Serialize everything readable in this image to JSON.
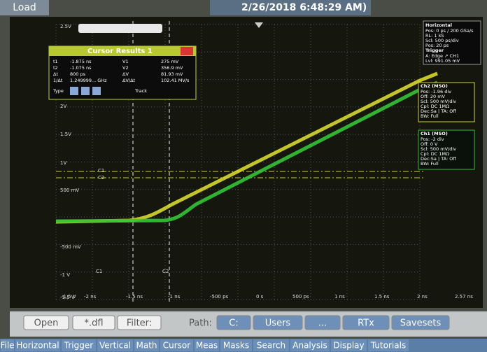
{
  "header": {
    "load": "Load",
    "datetime": "2/26/2018 6:48:29 AM)"
  },
  "axes": {
    "y_labels": [
      "2.5V",
      "2V",
      "1.5V",
      "1V",
      "500 mV",
      "-500 mV",
      "-1 V",
      "-1.5 V"
    ],
    "x_labels": [
      "-1.5 V",
      "-2 ns",
      "-1.5 ns",
      "-1 ns",
      "-500 ps",
      "0 s",
      "500 ps",
      "1 ns",
      "1.5 ns",
      "2 ns",
      "2.57 ns"
    ],
    "cursor_tags": [
      "C1",
      "C2",
      "C1",
      "C2"
    ]
  },
  "cursor_results": {
    "title": "Cursor Results 1",
    "rows": [
      [
        "t1",
        "-1.875 ns",
        "V1",
        "275 mV"
      ],
      [
        "t2",
        "-1.075 ns",
        "V2",
        "356.9 mV"
      ],
      [
        "Δt",
        "800 ps",
        "ΔV",
        "81.93 mV"
      ],
      [
        "1/Δt",
        "1.249999... GHz",
        "ΔV/Δt",
        "102.41 MV/s"
      ]
    ],
    "type": "Type",
    "track": "Track"
  },
  "horizontal": {
    "title": "Horizontal",
    "lines": [
      "Pos: 0 ps / 200 GSa/s",
      "RL: 1 kS",
      "Scl: 500 ps/div",
      "Pos: 20 ps"
    ]
  },
  "trigger": {
    "title": "Trigger",
    "lines": [
      "A: Edge ↗ CH1",
      "Lvl: 991.05 mV"
    ]
  },
  "ch2": {
    "title": "Ch2 (MSO)",
    "lines": [
      "Pos: -1.96 div",
      "Off: 20 mV",
      "Scl: 500 mV/div",
      "Cpl: DC 1MΩ",
      "Dec:Sa | TA: Off",
      "BW: Full"
    ]
  },
  "ch1": {
    "title": "Ch1 (MSO)",
    "lines": [
      "Pos: -2 div",
      "Off: 0 V",
      "Scl: 500 mV/div",
      "Cpl: DC 1MΩ",
      "Dec:Sa | TA: Off",
      "BW: Full"
    ]
  },
  "toolbar": {
    "open": "Open",
    "filetype": "*.dfl",
    "filter": "Filter:",
    "path": "Path:",
    "crumbs": [
      "C:",
      "Users",
      "...",
      "RTx",
      "Savesets"
    ]
  },
  "menu": [
    "File",
    "Horizontal",
    "Trigger",
    "Vertical",
    "Math",
    "Cursor",
    "Meas",
    "Masks",
    "Search",
    "Analysis",
    "Display",
    "Tutorials"
  ]
}
